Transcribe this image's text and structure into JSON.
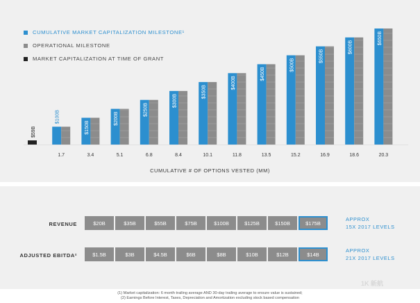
{
  "legend": [
    {
      "label": "CUMULATIVE MARKET CAPITALIZATION MILESTONE¹",
      "color": "#2c8fcf"
    },
    {
      "label": "OPERATIONAL MILESTONE",
      "color": "#8c8c8c"
    },
    {
      "label": "MARKET CAPITALIZATION AT TIME OF GRANT",
      "color": "#222222"
    }
  ],
  "chart_data": {
    "type": "bar",
    "xlabel": "CUMULATIVE # OF OPTIONS VESTED (MM)",
    "categories": [
      "",
      "1.7",
      "3.4",
      "5.1",
      "6.8",
      "8.4",
      "10.1",
      "11.8",
      "13.5",
      "15.2",
      "16.9",
      "18.6",
      "20.3"
    ],
    "series": [
      {
        "name": "CUMULATIVE MARKET CAPITALIZATION MILESTONE¹",
        "color": "#2c8fcf",
        "values": [
          null,
          100,
          150,
          200,
          250,
          300,
          350,
          400,
          450,
          500,
          550,
          600,
          650
        ],
        "labels": [
          "",
          "$100B",
          "$150B",
          "$200B",
          "$250B",
          "$300B",
          "$350B",
          "$400B",
          "$450B",
          "$500B",
          "$550B",
          "$600B",
          "$650B"
        ]
      },
      {
        "name": "OPERATIONAL MILESTONE",
        "color": "#8c8c8c",
        "values": [
          null,
          100,
          150,
          200,
          250,
          300,
          350,
          400,
          450,
          500,
          550,
          600,
          650
        ]
      },
      {
        "name": "MARKET CAPITALIZATION AT TIME OF GRANT",
        "color": "#222222",
        "values": [
          59,
          null,
          null,
          null,
          null,
          null,
          null,
          null,
          null,
          null,
          null,
          null,
          null
        ],
        "labels": [
          "$59B",
          "",
          "",
          "",
          "",
          "",
          "",
          "",
          "",
          "",
          "",
          "",
          ""
        ]
      }
    ],
    "ylim": [
      0,
      650
    ]
  },
  "table": {
    "revenue": {
      "label": "REVENUE",
      "cells": [
        "$20B",
        "$35B",
        "$55B",
        "$75B",
        "$100B",
        "$125B",
        "$150B",
        "$175B"
      ],
      "note_line1": "APPROX",
      "note_line2": "15X 2017 LEVELS"
    },
    "ebitda": {
      "label": "ADJUSTED EBITDA²",
      "cells": [
        "$1.5B",
        "$3B",
        "$4.5B",
        "$6B",
        "$8B",
        "$10B",
        "$12B",
        "$14B"
      ],
      "note_line1": "APPROX",
      "note_line2": "21X 2017 LEVELS"
    },
    "highlight_color": "#2c8fcf"
  },
  "footnotes": [
    "(1) Market capitalization: 6 month trailing average AND 30-day trailing average to ensure value is sustained;",
    "(2) Earnings Before Interest, Taxes, Depreciation and Amortization excluding stock based compensation"
  ],
  "watermark": "1K 新航"
}
